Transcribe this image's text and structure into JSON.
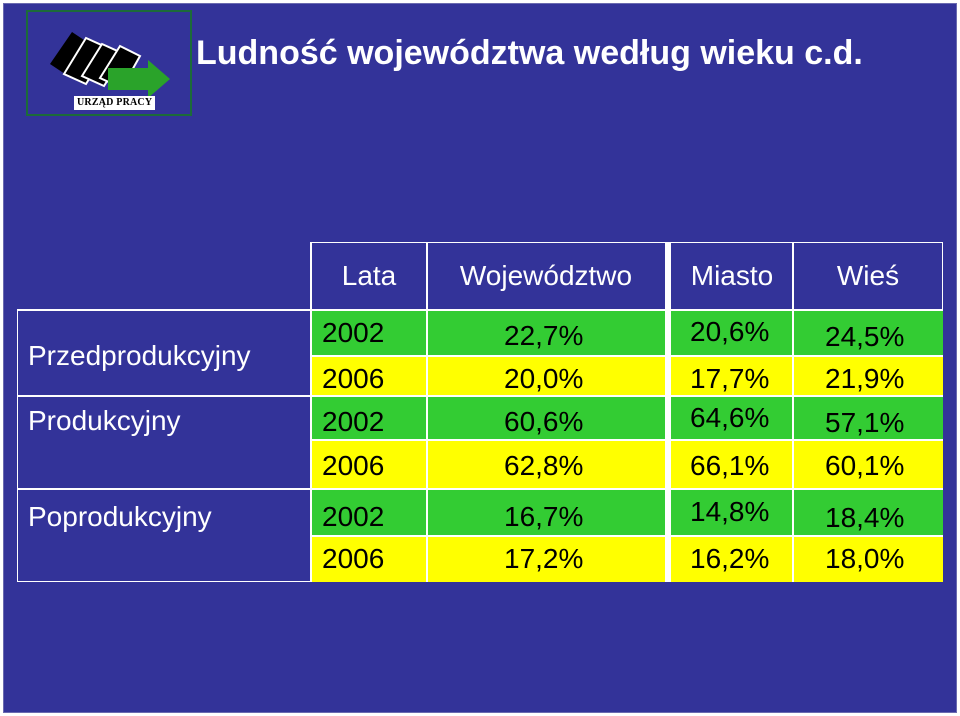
{
  "logo": {
    "label": "URZĄD PRACY"
  },
  "title": "Ludność województwa według wieku c.d.",
  "table": {
    "headers": {
      "years": "Lata",
      "region": "Województwo",
      "city": "Miasto",
      "village": "Wieś"
    },
    "groups": [
      {
        "name": "Przedprodukcyjny",
        "rows": [
          {
            "year": "2002",
            "region": "22,7%",
            "city": "20,6%",
            "village": "24,5%"
          },
          {
            "year": "2006",
            "region": "20,0%",
            "city": "17,7%",
            "village": "21,9%"
          }
        ]
      },
      {
        "name": "Produkcyjny",
        "rows": [
          {
            "year": "2002",
            "region": "60,6%",
            "city": "64,6%",
            "village": "57,1%"
          },
          {
            "year": "2006",
            "region": "62,8%",
            "city": "66,1%",
            "village": "60,1%"
          }
        ]
      },
      {
        "name": "Poprodukcyjny",
        "rows": [
          {
            "year": "2002",
            "region": "16,7%",
            "city": "14,8%",
            "village": "18,4%"
          },
          {
            "year": "2006",
            "region": "17,2%",
            "city": "16,2%",
            "village": "18,0%"
          }
        ]
      }
    ]
  },
  "colors": {
    "background": "#333399",
    "row_2002": "#33cc33",
    "row_2006": "#ffff00"
  }
}
